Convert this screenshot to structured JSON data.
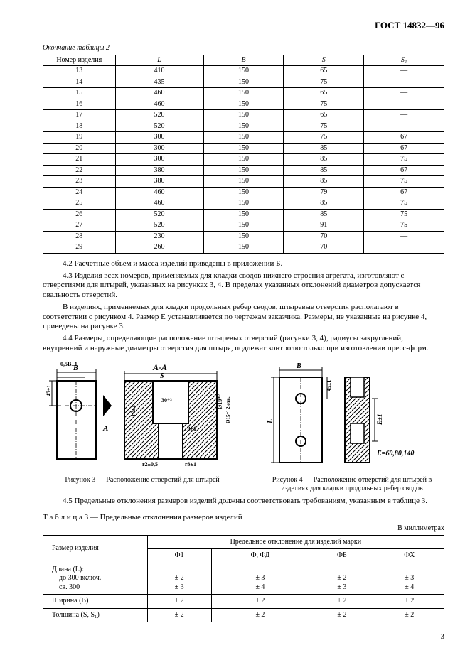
{
  "header": "ГОСТ 14832—96",
  "table1": {
    "title_cont": "Окончание таблицы 2",
    "headers": [
      "Номер изделия",
      "L",
      "B",
      "S",
      "S₁"
    ],
    "rows": [
      [
        "13",
        "410",
        "150",
        "65",
        "—"
      ],
      [
        "14",
        "435",
        "150",
        "75",
        "—"
      ],
      [
        "15",
        "460",
        "150",
        "65",
        "—"
      ],
      [
        "16",
        "460",
        "150",
        "75",
        "—"
      ],
      [
        "17",
        "520",
        "150",
        "65",
        "—"
      ],
      [
        "18",
        "520",
        "150",
        "75",
        "—"
      ],
      [
        "19",
        "300",
        "150",
        "75",
        "67"
      ],
      [
        "20",
        "300",
        "150",
        "85",
        "67"
      ],
      [
        "21",
        "300",
        "150",
        "85",
        "75"
      ],
      [
        "22",
        "380",
        "150",
        "85",
        "67"
      ],
      [
        "23",
        "380",
        "150",
        "85",
        "75"
      ],
      [
        "24",
        "460",
        "150",
        "79",
        "67"
      ],
      [
        "25",
        "460",
        "150",
        "85",
        "75"
      ],
      [
        "26",
        "520",
        "150",
        "85",
        "75"
      ],
      [
        "27",
        "520",
        "150",
        "91",
        "75"
      ],
      [
        "28",
        "230",
        "150",
        "70",
        "—"
      ],
      [
        "29",
        "260",
        "150",
        "70",
        "—"
      ]
    ]
  },
  "paras": {
    "p1": "4.2 Расчетные объем и масса изделий приведены в приложении Б.",
    "p2": "4.3 Изделия всех номеров, применяемых для кладки сводов нижнего строения агрегата, изготовляют с отверстиями для штырей, указанных на рисунках 3, 4. В пределах указанных отклонений диаметров допускается овальность отверстий.",
    "p3": "В изделиях, применяемых для кладки продольных ребер сводов, штыревые отверстия располагают в соответствии с рисунком 4. Размер E устанавливается по чертежам заказчика. Размеры, не указанные на рисунке 4, приведены на рисунке 3.",
    "p4": "4.4 Размеры, определяющие расположение штыревых отверстий (рисунки 3, 4), радиусы закруглений, внутренний и наружные диаметры отверстия для штыря, подлежат контролю только при изготовлении пресс-форм.",
    "p5": "4.5 Предельные отклонения размеров изделий должны соответствовать требованиям, указанным в таблице 3."
  },
  "figures": {
    "fig3_caption": "Рисунок 3 — Расположение отверстий для штырей",
    "fig4_caption": "Рисунок 4 — Расположение отверстий для штырей в изделиях для кладки продольных ребер сводов",
    "fig3_labels": {
      "B": "B",
      "AA": "А-А",
      "S": "S",
      "t58": "0,5B±1",
      "d45": "45±1",
      "d19": "Ø19⁺²",
      "r7": "r7±1",
      "r3": "r3±1",
      "r2": "r2±0,5",
      "ang": "30⁺³",
      "fillet": "Ø15⁺²   2 отв."
    },
    "fig4_labels": {
      "B": "B",
      "L": "L",
      "d45": "45±1",
      "E": "E±1",
      "Evals": "E=60,80,140"
    }
  },
  "table3": {
    "title": "Т а б л и ц а   3 — Предельные отклонения размеров изделий",
    "units": "В миллиметрах",
    "header_top": "Предельное отклонение для изделий марки",
    "header_left": "Размер изделия",
    "col_marks": [
      "Ф1",
      "Ф, ФД",
      "ФБ",
      "ФХ"
    ],
    "rows": [
      {
        "label": "Длина (L):",
        "vals": [
          "",
          "",
          "",
          ""
        ]
      },
      {
        "label": "до 300 включ.",
        "indent": true,
        "vals": [
          "± 2",
          "± 3",
          "± 2",
          "± 3"
        ]
      },
      {
        "label": "св. 300",
        "indent": true,
        "vals": [
          "± 3",
          "± 4",
          "± 3",
          "± 4"
        ]
      },
      {
        "label": "Ширина (B)",
        "vals": [
          "± 2",
          "± 2",
          "± 2",
          "± 2"
        ]
      },
      {
        "label": "Толщина (S, S₁)",
        "vals": [
          "± 2",
          "± 2",
          "± 2",
          "± 2"
        ]
      }
    ]
  },
  "page_num": "3",
  "colors": {
    "line": "#000000",
    "bg": "#ffffff",
    "hatch": "#000000"
  }
}
